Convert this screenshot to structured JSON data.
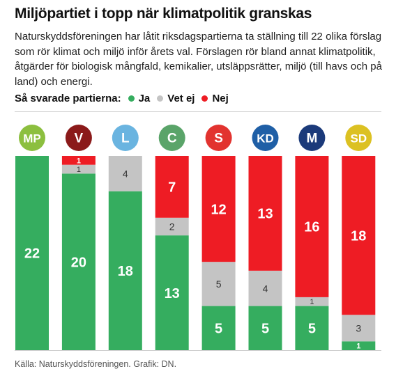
{
  "title": "Miljöpartiet i topp när klimatpolitik granskas",
  "subtitle": "Naturskyddsföreningen har låtit riksdagspartierna ta ställning till 22 olika förslag som rör klimat och miljö inför årets val. Förslagen rör bland annat klimatpolitik, åtgärder för biologisk mångfald, kemikalier, utsläppsrätter, miljö (till havs och på land) och energi.",
  "legend": {
    "intro": "Så svarade partierna:",
    "items": [
      {
        "label": "Ja",
        "color": "#35ad5f"
      },
      {
        "label": "Vet ej",
        "color": "#c4c4c4"
      },
      {
        "label": "Nej",
        "color": "#ee1c24"
      }
    ]
  },
  "source": "Källa: Naturskyddsföreningen. Grafik: DN.",
  "chart_data": {
    "type": "bar",
    "stacked": true,
    "total": 22,
    "categories": [
      "MP",
      "V",
      "L",
      "C",
      "S",
      "KD",
      "M",
      "SD"
    ],
    "badge_colors": [
      "#8cbf3f",
      "#8b1a1a",
      "#6ab4e0",
      "#5aa469",
      "#e2332f",
      "#1f5fa6",
      "#1b3a7a",
      "#dcc122"
    ],
    "series": [
      {
        "name": "Ja",
        "color": "#35ad5f",
        "values": [
          22,
          20,
          18,
          13,
          5,
          5,
          5,
          1
        ]
      },
      {
        "name": "Vet ej",
        "color": "#c4c4c4",
        "values": [
          0,
          1,
          4,
          2,
          5,
          4,
          1,
          3
        ]
      },
      {
        "name": "Nej",
        "color": "#ee1c24",
        "values": [
          0,
          1,
          0,
          7,
          12,
          13,
          16,
          18
        ]
      }
    ]
  }
}
